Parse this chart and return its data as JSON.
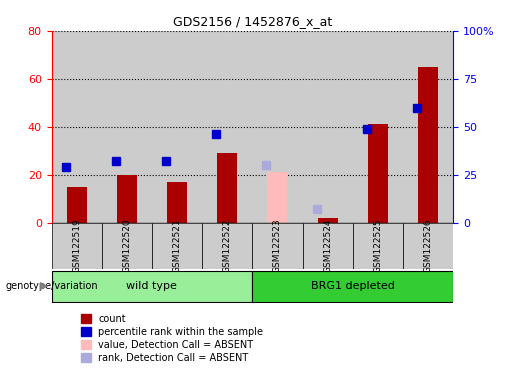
{
  "title": "GDS2156 / 1452876_x_at",
  "samples": [
    "GSM122519",
    "GSM122520",
    "GSM122521",
    "GSM122522",
    "GSM122523",
    "GSM122524",
    "GSM122525",
    "GSM122526"
  ],
  "count_values": [
    15,
    20,
    17,
    29,
    null,
    2,
    41,
    65
  ],
  "rank_values": [
    29,
    32,
    32,
    46,
    null,
    null,
    49,
    60
  ],
  "absent_value_values": [
    null,
    null,
    null,
    null,
    21,
    null,
    null,
    null
  ],
  "absent_rank_values": [
    null,
    null,
    null,
    null,
    30,
    7,
    null,
    null
  ],
  "wild_type_indices": [
    0,
    1,
    2,
    3
  ],
  "brg1_indices": [
    4,
    5,
    6,
    7
  ],
  "left_ylim": [
    0,
    80
  ],
  "right_ylim": [
    0,
    100
  ],
  "left_yticks": [
    0,
    20,
    40,
    60,
    80
  ],
  "right_yticks": [
    0,
    25,
    50,
    75,
    100
  ],
  "right_yticklabels": [
    "0",
    "25",
    "50",
    "75",
    "100%"
  ],
  "bar_color": "#AA0000",
  "rank_color": "#0000CC",
  "absent_bar_color": "#FFBBBB",
  "absent_rank_color": "#AAAADD",
  "group1_label": "wild type",
  "group2_label": "BRG1 depleted",
  "group1_color": "#99EE99",
  "group2_color": "#33CC33",
  "legend_items": [
    {
      "label": "count",
      "color": "#AA0000"
    },
    {
      "label": "percentile rank within the sample",
      "color": "#0000CC"
    },
    {
      "label": "value, Detection Call = ABSENT",
      "color": "#FFBBBB"
    },
    {
      "label": "rank, Detection Call = ABSENT",
      "color": "#AAAADD"
    }
  ],
  "bar_width": 0.4,
  "rank_marker_size": 6,
  "bg_color": "#CCCCCC",
  "plot_bg": "#DDDDDD"
}
